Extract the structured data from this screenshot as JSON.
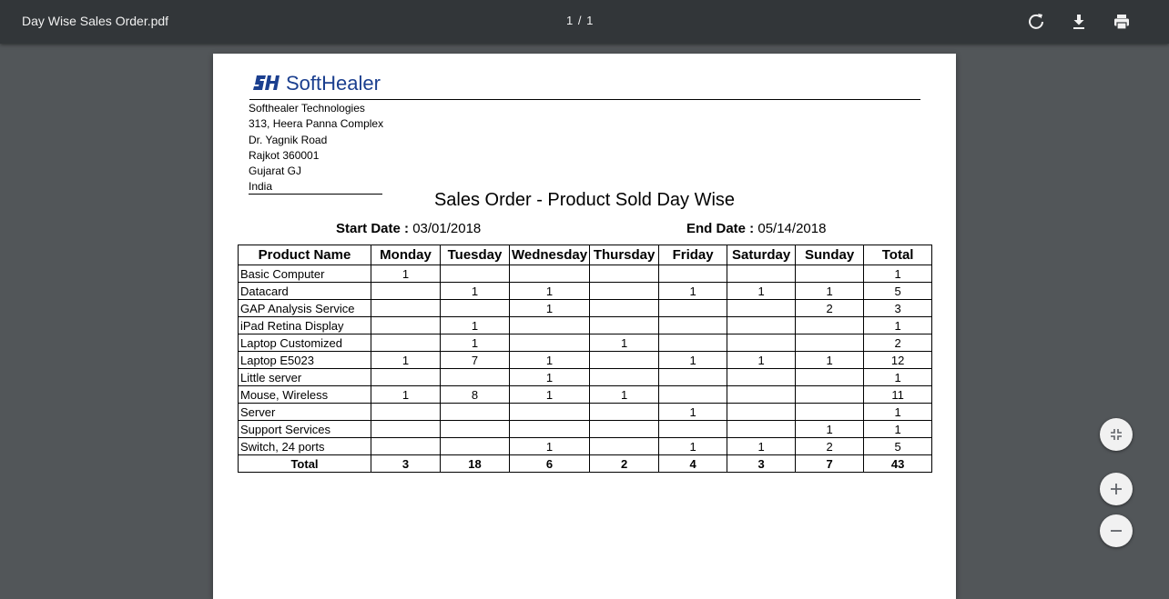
{
  "toolbar": {
    "title": "Day Wise Sales Order.pdf",
    "page_indicator": "1 / 1",
    "icons": [
      "rotate-icon",
      "download-icon",
      "print-icon"
    ]
  },
  "document": {
    "logo_text": "SoftHealer",
    "brand_color": "#1b3f8f",
    "address": [
      "Softhealer Technologies",
      "313, Heera Panna Complex",
      "Dr. Yagnik Road",
      "Rajkot 360001",
      "Gujarat GJ",
      "India"
    ],
    "report_title": "Sales Order - Product Sold Day Wise",
    "start_date_label": "Start Date :",
    "start_date": "03/01/2018",
    "end_date_label": "End Date :",
    "end_date": "05/14/2018",
    "table": {
      "columns": [
        "Product Name",
        "Monday",
        "Tuesday",
        "Wednesday",
        "Thursday",
        "Friday",
        "Saturday",
        "Sunday",
        "Total"
      ],
      "rows": [
        [
          "Basic Computer",
          "1",
          "",
          "",
          "",
          "",
          "",
          "",
          "1"
        ],
        [
          "Datacard",
          "",
          "1",
          "1",
          "",
          "1",
          "1",
          "1",
          "5"
        ],
        [
          "GAP Analysis Service",
          "",
          "",
          "1",
          "",
          "",
          "",
          "2",
          "3"
        ],
        [
          "iPad Retina Display",
          "",
          "1",
          "",
          "",
          "",
          "",
          "",
          "1"
        ],
        [
          "Laptop Customized",
          "",
          "1",
          "",
          "1",
          "",
          "",
          "",
          "2"
        ],
        [
          "Laptop E5023",
          "1",
          "7",
          "1",
          "",
          "1",
          "1",
          "1",
          "12"
        ],
        [
          "Little server",
          "",
          "",
          "1",
          "",
          "",
          "",
          "",
          "1"
        ],
        [
          "Mouse, Wireless",
          "1",
          "8",
          "1",
          "1",
          "",
          "",
          "",
          "11"
        ],
        [
          "Server",
          "",
          "",
          "",
          "",
          "1",
          "",
          "",
          "1"
        ],
        [
          "Support Services",
          "",
          "",
          "",
          "",
          "",
          "",
          "1",
          "1"
        ],
        [
          "Switch, 24 ports",
          "",
          "",
          "1",
          "",
          "1",
          "1",
          "2",
          "5"
        ]
      ],
      "total_row": [
        "Total",
        "3",
        "18",
        "6",
        "2",
        "4",
        "3",
        "7",
        "43"
      ]
    }
  },
  "zoom_controls": [
    "fit-page-icon",
    "zoom-in-icon",
    "zoom-out-icon"
  ]
}
